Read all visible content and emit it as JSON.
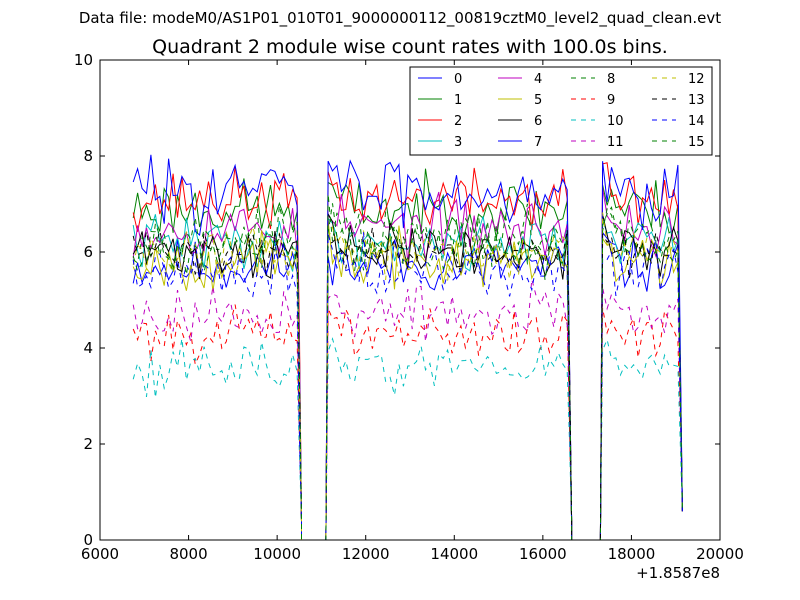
{
  "chart_data": {
    "type": "line",
    "file_label": "Data file: modeM0/AS1P01_010T01_9000000112_00819cztM0_level2_quad_clean.evt",
    "title": "Quadrant 2 module wise count rates with 100.0s bins.",
    "xlabel": "",
    "ylabel": "",
    "x_offset_label": "+1.8587e8",
    "xlim": [
      6000,
      20000
    ],
    "ylim": [
      0,
      10
    ],
    "x_ticks": [
      6000,
      8000,
      10000,
      12000,
      14000,
      16000,
      18000,
      20000
    ],
    "x_tick_labels": [
      "6000",
      "8000",
      "10000",
      "12000",
      "14000",
      "16000",
      "18000",
      "20000"
    ],
    "y_ticks": [
      0,
      2,
      4,
      6,
      8,
      10
    ],
    "y_tick_labels": [
      "0",
      "2",
      "4",
      "6",
      "8",
      "10"
    ],
    "bin_seconds": 100,
    "segments": [
      [
        6750,
        10450
      ],
      [
        11150,
        16550
      ],
      [
        17350,
        19050
      ]
    ],
    "gaps": [
      [
        10500,
        11100
      ],
      [
        16600,
        17300
      ]
    ],
    "end_x": 19150,
    "end_value": 0.6,
    "legend_position": "upper right",
    "series": [
      {
        "name": "0",
        "color": "#0000ff",
        "style": "solid",
        "mean": 5.7,
        "noise": 0.28,
        "seed": 11
      },
      {
        "name": "1",
        "color": "#008000",
        "style": "solid",
        "mean": 6.9,
        "noise": 0.3,
        "seed": 23
      },
      {
        "name": "2",
        "color": "#ff0000",
        "style": "solid",
        "mean": 7.1,
        "noise": 0.3,
        "seed": 37
      },
      {
        "name": "3",
        "color": "#00bfbf",
        "style": "solid",
        "mean": 6.2,
        "noise": 0.28,
        "seed": 41
      },
      {
        "name": "4",
        "color": "#bf00bf",
        "style": "solid",
        "mean": 6.5,
        "noise": 0.3,
        "seed": 53
      },
      {
        "name": "5",
        "color": "#bfbf00",
        "style": "solid",
        "mean": 5.8,
        "noise": 0.28,
        "seed": 67
      },
      {
        "name": "6",
        "color": "#000000",
        "style": "solid",
        "mean": 6.0,
        "noise": 0.28,
        "seed": 71
      },
      {
        "name": "7",
        "color": "#0000ff",
        "style": "solid",
        "mean": 7.3,
        "noise": 0.35,
        "seed": 83
      },
      {
        "name": "8",
        "color": "#008000",
        "style": "dashed",
        "mean": 6.3,
        "noise": 0.25,
        "seed": 97
      },
      {
        "name": "9",
        "color": "#ff0000",
        "style": "dashed",
        "mean": 4.3,
        "noise": 0.25,
        "seed": 101
      },
      {
        "name": "10",
        "color": "#00bfbf",
        "style": "dashed",
        "mean": 3.6,
        "noise": 0.25,
        "seed": 113
      },
      {
        "name": "11",
        "color": "#bf00bf",
        "style": "dashed",
        "mean": 4.7,
        "noise": 0.28,
        "seed": 127
      },
      {
        "name": "12",
        "color": "#bfbf00",
        "style": "dashed",
        "mean": 6.0,
        "noise": 0.25,
        "seed": 131
      },
      {
        "name": "13",
        "color": "#000000",
        "style": "dashed",
        "mean": 6.0,
        "noise": 0.25,
        "seed": 139
      },
      {
        "name": "14",
        "color": "#0000ff",
        "style": "dashed",
        "mean": 5.6,
        "noise": 0.28,
        "seed": 149
      },
      {
        "name": "15",
        "color": "#008000",
        "style": "dashed",
        "mean": 6.1,
        "noise": 0.25,
        "seed": 157
      }
    ]
  }
}
